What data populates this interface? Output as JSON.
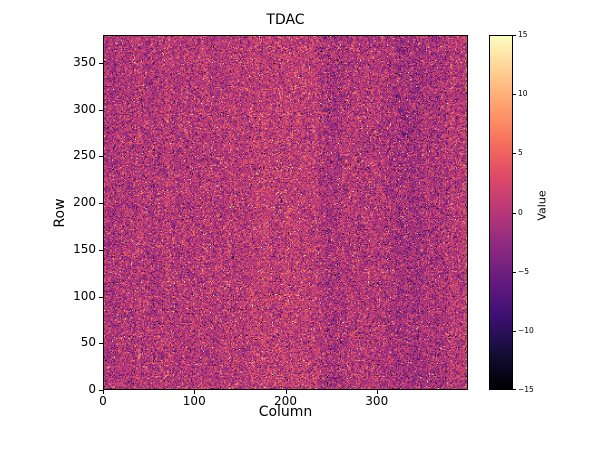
{
  "figure": {
    "background_color": "#ffffff",
    "text_color": "#000000"
  },
  "chart_data": {
    "type": "heatmap",
    "title": "TDAC",
    "xlabel": "Column",
    "ylabel": "Row",
    "colorbar_label": "Value",
    "xlim": [
      0,
      400
    ],
    "ylim": [
      0,
      380
    ],
    "x_ticks": [
      0,
      100,
      200,
      300
    ],
    "x_tick_labels": [
      "0",
      "100",
      "200",
      "300"
    ],
    "y_ticks": [
      0,
      50,
      100,
      150,
      200,
      250,
      300,
      350
    ],
    "y_tick_labels": [
      "0",
      "50",
      "100",
      "150",
      "200",
      "250",
      "300",
      "350"
    ],
    "colorbar_ticks": [
      15,
      10,
      5,
      0,
      -5,
      -10,
      -15
    ],
    "colorbar_tick_labels": [
      "15",
      "10",
      "5",
      "0",
      "−5",
      "−10",
      "−15"
    ],
    "vmin": -15,
    "vmax": 15,
    "grid": false,
    "legend": "none",
    "colormap": "magma",
    "colormap_anchors": [
      "#000004",
      "#140e36",
      "#3b0f70",
      "#641a80",
      "#8c2981",
      "#b73779",
      "#de4968",
      "#f7705c",
      "#fe9f6d",
      "#fecf92",
      "#fcfdbf"
    ],
    "data_description": "Dense per-pixel random noise map of TDAC values, centered near 0 with speckled bright and dark outliers",
    "noise": {
      "cols": 400,
      "rows": 380,
      "mean": 0,
      "std": 3.5,
      "outlier_fraction": 0.08,
      "outlier_std": 8,
      "column_structure_amplitude": 0.15,
      "seed": 42
    }
  }
}
